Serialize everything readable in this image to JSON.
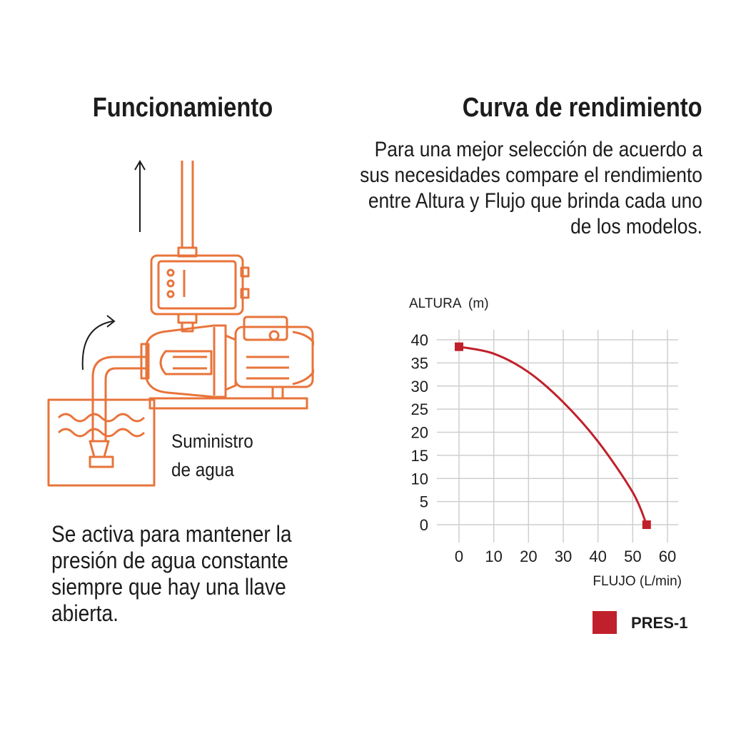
{
  "left": {
    "title": "Funcionamiento",
    "supply_label_line1": "Suministro",
    "supply_label_line2": "de agua",
    "description": "Se activa para mantener la presión de agua constante siempre que hay una llave abierta."
  },
  "right": {
    "title": "Curva de rendimiento",
    "description": "Para una mejor selección de acuerdo a sus necesidades compare el rendimiento entre Altura y Flujo que brinda cada uno de los modelos."
  },
  "colors": {
    "illustration": "#e8743b",
    "series": "#c0202b",
    "grid": "#cfcfcf"
  },
  "chart_data": {
    "type": "line",
    "ylabel": "ALTURA  (m)",
    "xlabel": "FLUJO (L/min)",
    "xlim": [
      0,
      60
    ],
    "ylim": [
      0,
      40
    ],
    "x_ticks": [
      0,
      10,
      20,
      30,
      40,
      50,
      60
    ],
    "y_ticks": [
      0,
      5,
      10,
      15,
      20,
      25,
      30,
      35,
      40
    ],
    "grid": true,
    "legend_position": "bottom-right",
    "series": [
      {
        "name": "PRES-1",
        "color": "#c0202b",
        "x": [
          0,
          10,
          20,
          30,
          40,
          50,
          54
        ],
        "y": [
          38.5,
          37,
          33,
          26.5,
          18,
          7,
          0
        ]
      }
    ]
  }
}
